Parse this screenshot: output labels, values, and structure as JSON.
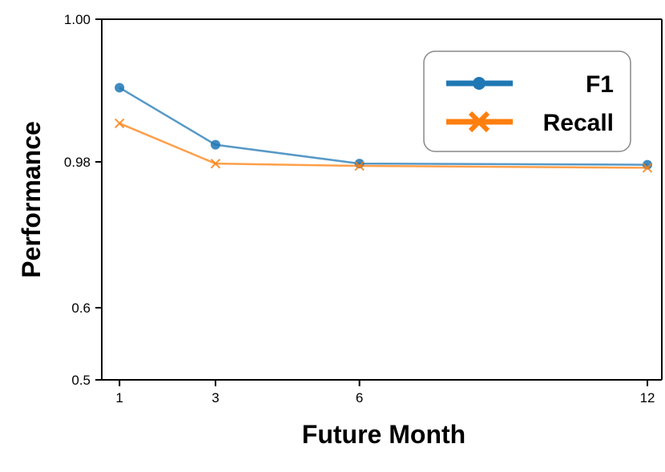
{
  "chart_data": {
    "type": "line",
    "x": [
      1,
      3,
      6,
      12
    ],
    "xticks": [
      "1",
      "3",
      "6",
      "12"
    ],
    "y_ticks": [
      "1.00",
      "0.98",
      "0.6",
      "0.5"
    ],
    "y_tick_values": [
      1.0,
      0.98,
      0.6,
      0.5
    ],
    "xlabel": "Future Month",
    "ylabel": "Performance",
    "grid": false,
    "legend_position": "top-right",
    "series": [
      {
        "name": "F1",
        "marker": "circle",
        "color": "#1f77b4",
        "values": [
          0.9904,
          0.9824,
          0.9755,
          0.9725
        ]
      },
      {
        "name": "Recall",
        "marker": "x",
        "color": "#ff7f0e",
        "values": [
          0.9854,
          0.9755,
          0.9695,
          0.9645
        ]
      }
    ]
  }
}
